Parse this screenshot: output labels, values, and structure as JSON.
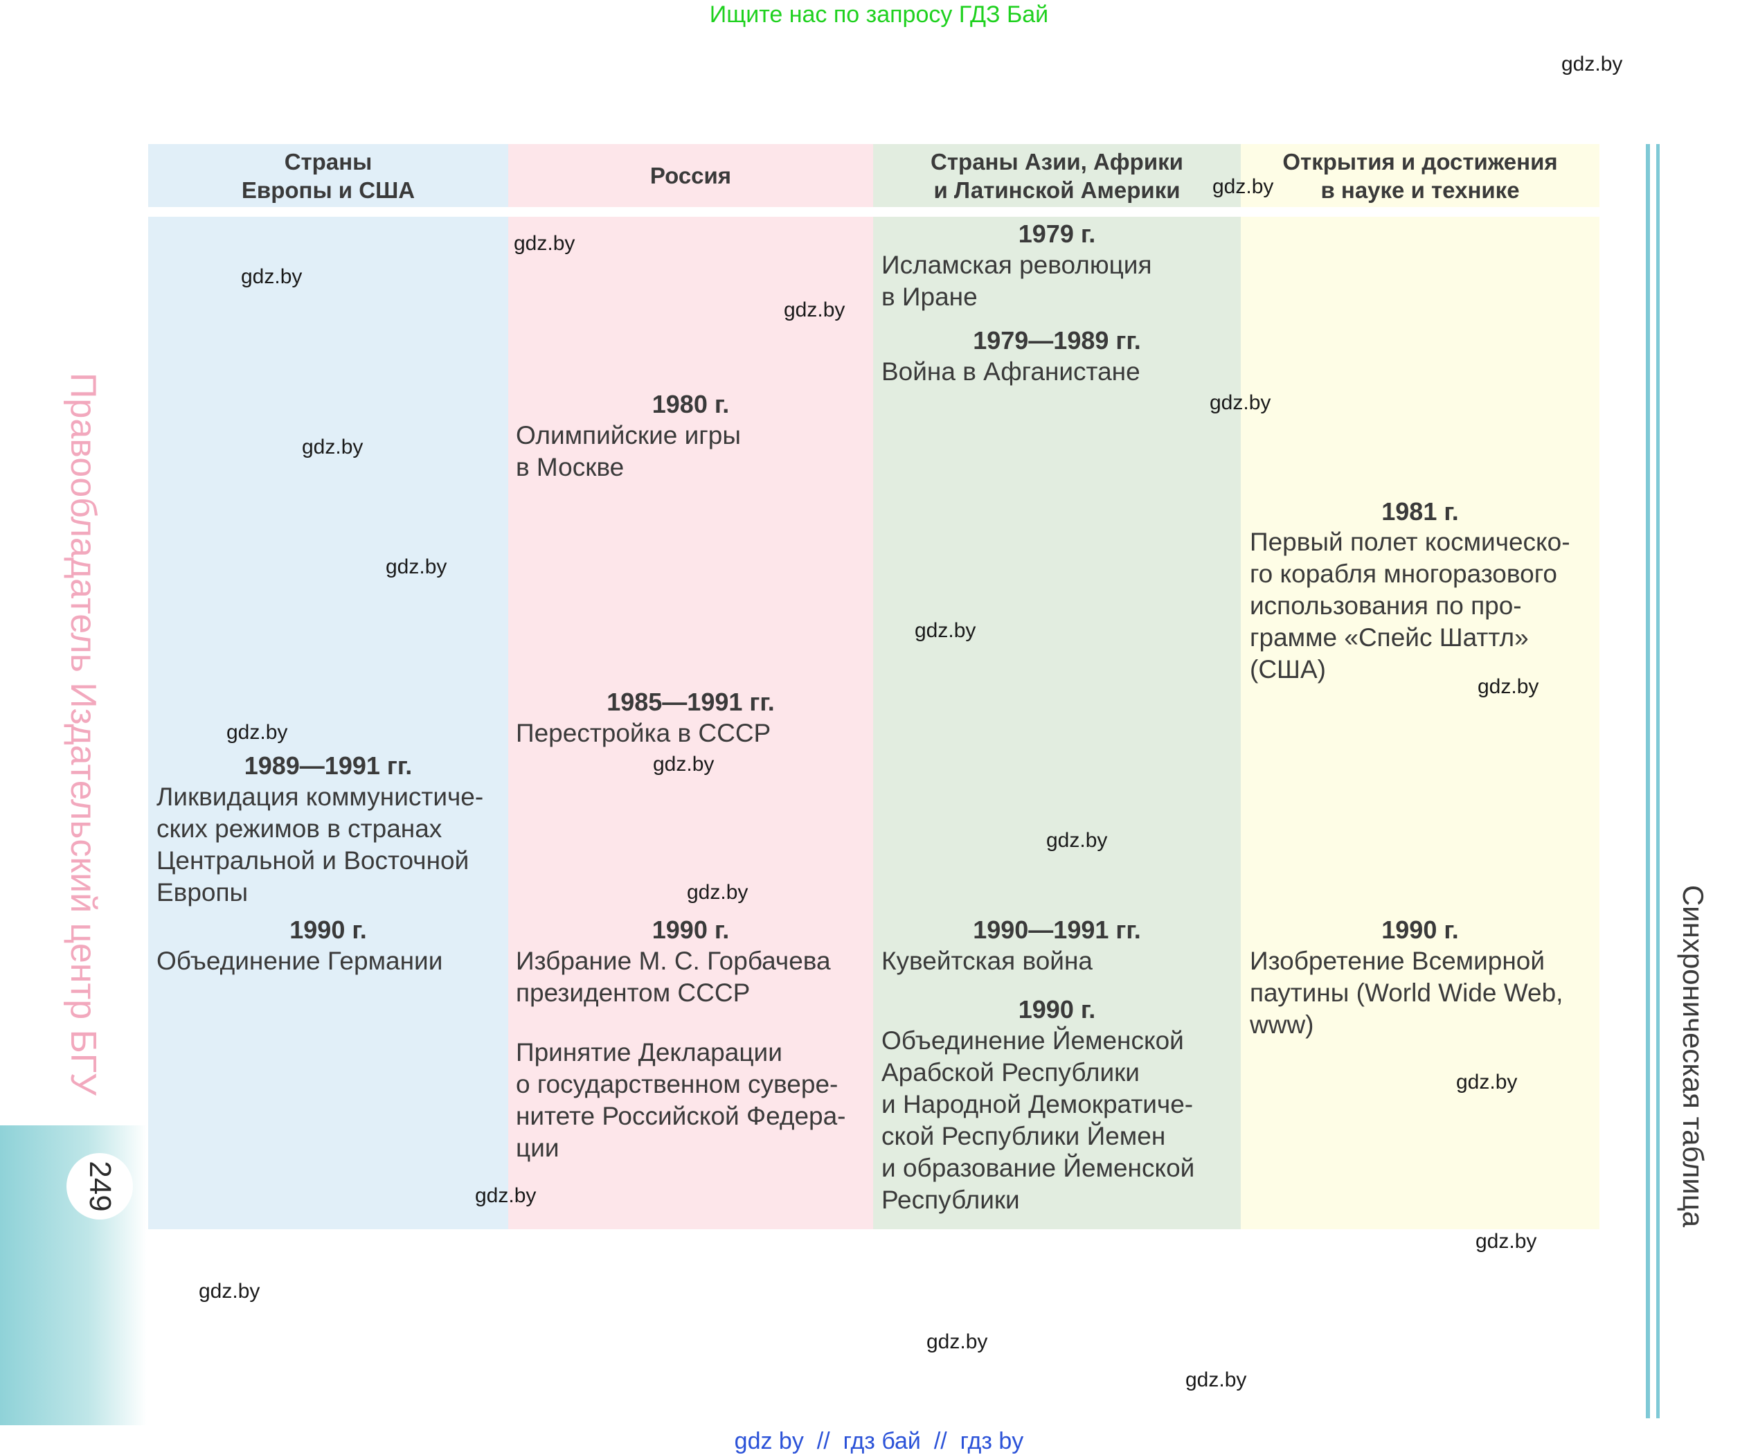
{
  "top_banner": "Ищите нас по запросу ГДЗ Бай",
  "watermark": "gdz.by",
  "headers": {
    "europe_usa": [
      "Страны",
      "Европы и США"
    ],
    "russia": [
      "Россия"
    ],
    "asia_africa_latam": [
      "Страны Азии, Африки",
      "и Латинской Америки"
    ],
    "science": [
      "Открытия и достижения",
      "в науке и технике"
    ]
  },
  "events": {
    "iran_year": "1979 г.",
    "iran_text": [
      "Исламская революция",
      "в Иране"
    ],
    "afghan_year": "1979—1989 гг.",
    "afghan_text": [
      "Война в Афганистане"
    ],
    "olympics_year": "1980 г.",
    "olympics_text": [
      "Олимпийские игры",
      "в Москве"
    ],
    "shuttle_year": "1981 г.",
    "shuttle_text": [
      "Первый полет космическо-",
      "го корабля многоразового",
      "использования по про-",
      "грамме «Спейс Шаттл»",
      "(США)"
    ],
    "perestroika_year": "1985—1991 гг.",
    "perestroika_text": [
      "Перестройка в СССР"
    ],
    "liquidation_year": "1989—1991 гг.",
    "liquidation_text": [
      "Ликвидация коммунистиче-",
      "ских режимов в странах",
      "Центральной и Восточной",
      "Европы"
    ],
    "germany_year": "1990 г.",
    "germany_text": [
      "Объединение Германии"
    ],
    "gorbachev_year": "1990 г.",
    "gorbachev_text": [
      "Избрание М. С. Горбачева",
      "президентом СССР"
    ],
    "declaration_text": [
      "Принятие Декларации",
      "о государственном сувере-",
      "нитете Российской Федера-",
      "ции"
    ],
    "kuwait_year": "1990—1991 гг.",
    "kuwait_text": [
      "Кувейтская война"
    ],
    "yemen_year": "1990 г.",
    "yemen_text": [
      "Объединение Йеменской",
      "Арабской Республики",
      "и Народной Демократиче-",
      "ской Республики Йемен",
      "и образование Йеменской",
      "Республики"
    ],
    "www_year": "1990 г.",
    "www_text": [
      "Изобретение Всемирной",
      "паутины (World Wide Web,",
      "www)"
    ]
  },
  "side_title": "Синхроническая таблица",
  "rights_holder": "Правообладатель Издательский центр БГУ",
  "page_number": "249",
  "bottom_links": {
    "link1": "gdz by",
    "sep1": "//",
    "link2": "гдз бай",
    "sep2": "//",
    "link3": "гдз by"
  },
  "colors": {
    "europe_bg": "#e1eff8",
    "russia_bg": "#fde6ea",
    "asia_bg": "#e2ede0",
    "science_bg": "#fefde6",
    "banner_green": "#1fd11f",
    "link_blue": "#2b52d8",
    "accent_teal": "#7fc9d6",
    "rights_pink": "#f2a8bd"
  }
}
